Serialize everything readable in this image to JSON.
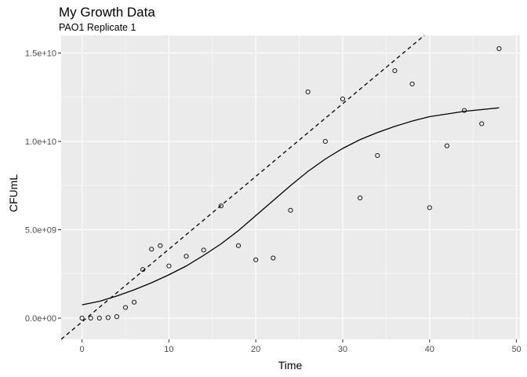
{
  "chart_data": {
    "type": "scatter",
    "title": "My Growth Data",
    "subtitle": "PAO1 Replicate 1",
    "xlabel": "Time",
    "ylabel": "CFUmL",
    "xlim": [
      -2.4,
      50.4
    ],
    "ylim": [
      -1200000000.0,
      16000000000.0
    ],
    "x_ticks": [
      0,
      10,
      20,
      30,
      40,
      50
    ],
    "x_tick_labels": [
      "0",
      "10",
      "20",
      "30",
      "40",
      "50"
    ],
    "y_ticks": [
      0,
      5000000000.0,
      10000000000.0,
      15000000000.0
    ],
    "y_tick_labels": [
      "0.0e+00",
      "5.0e+09",
      "1.0e+10",
      "1.5e+10"
    ],
    "grid": true,
    "legend": "none",
    "points": {
      "x": [
        0,
        1,
        2,
        3,
        4,
        5,
        6,
        7,
        8,
        9,
        10,
        12,
        14,
        16,
        18,
        20,
        22,
        24,
        26,
        28,
        30,
        32,
        34,
        36,
        38,
        40,
        42,
        44,
        46,
        48
      ],
      "y": [
        0,
        0,
        0,
        30000000.0,
        80000000.0,
        600000000.0,
        900000000.0,
        2750000000.0,
        3900000000.0,
        4100000000.0,
        2950000000.0,
        3500000000.0,
        3850000000.0,
        6350000000.0,
        4100000000.0,
        3300000000.0,
        3400000000.0,
        6100000000.0,
        12800000000.0,
        10000000000.0,
        12400000000.0,
        6800000000.0,
        9200000000.0,
        14000000000.0,
        13250000000.0,
        6250000000.0,
        9750000000.0,
        11750000000.0,
        11000000000.0,
        15250000000.0
      ]
    },
    "fit_curve": {
      "x": [
        0,
        2,
        4,
        6,
        8,
        10,
        12,
        14,
        16,
        18,
        20,
        22,
        24,
        26,
        28,
        30,
        32,
        34,
        36,
        38,
        40,
        42,
        44,
        46,
        48
      ],
      "y": [
        750000000.0,
        950000000.0,
        1250000000.0,
        1600000000.0,
        2000000000.0,
        2450000000.0,
        2950000000.0,
        3550000000.0,
        4200000000.0,
        4950000000.0,
        5800000000.0,
        6650000000.0,
        7500000000.0,
        8300000000.0,
        9000000000.0,
        9600000000.0,
        10100000000.0,
        10500000000.0,
        10850000000.0,
        11150000000.0,
        11400000000.0,
        11550000000.0,
        11700000000.0,
        11800000000.0,
        11900000000.0
      ]
    },
    "tangent_line": {
      "x": [
        -2.4,
        39.4
      ],
      "y": [
        -1200000000.0,
        16000000000.0
      ]
    },
    "colors": {
      "panel": "#ebebeb",
      "grid": "#ffffff",
      "points": "#000000",
      "lines": "#000000",
      "tick_labels": "#4d4d4d"
    }
  }
}
